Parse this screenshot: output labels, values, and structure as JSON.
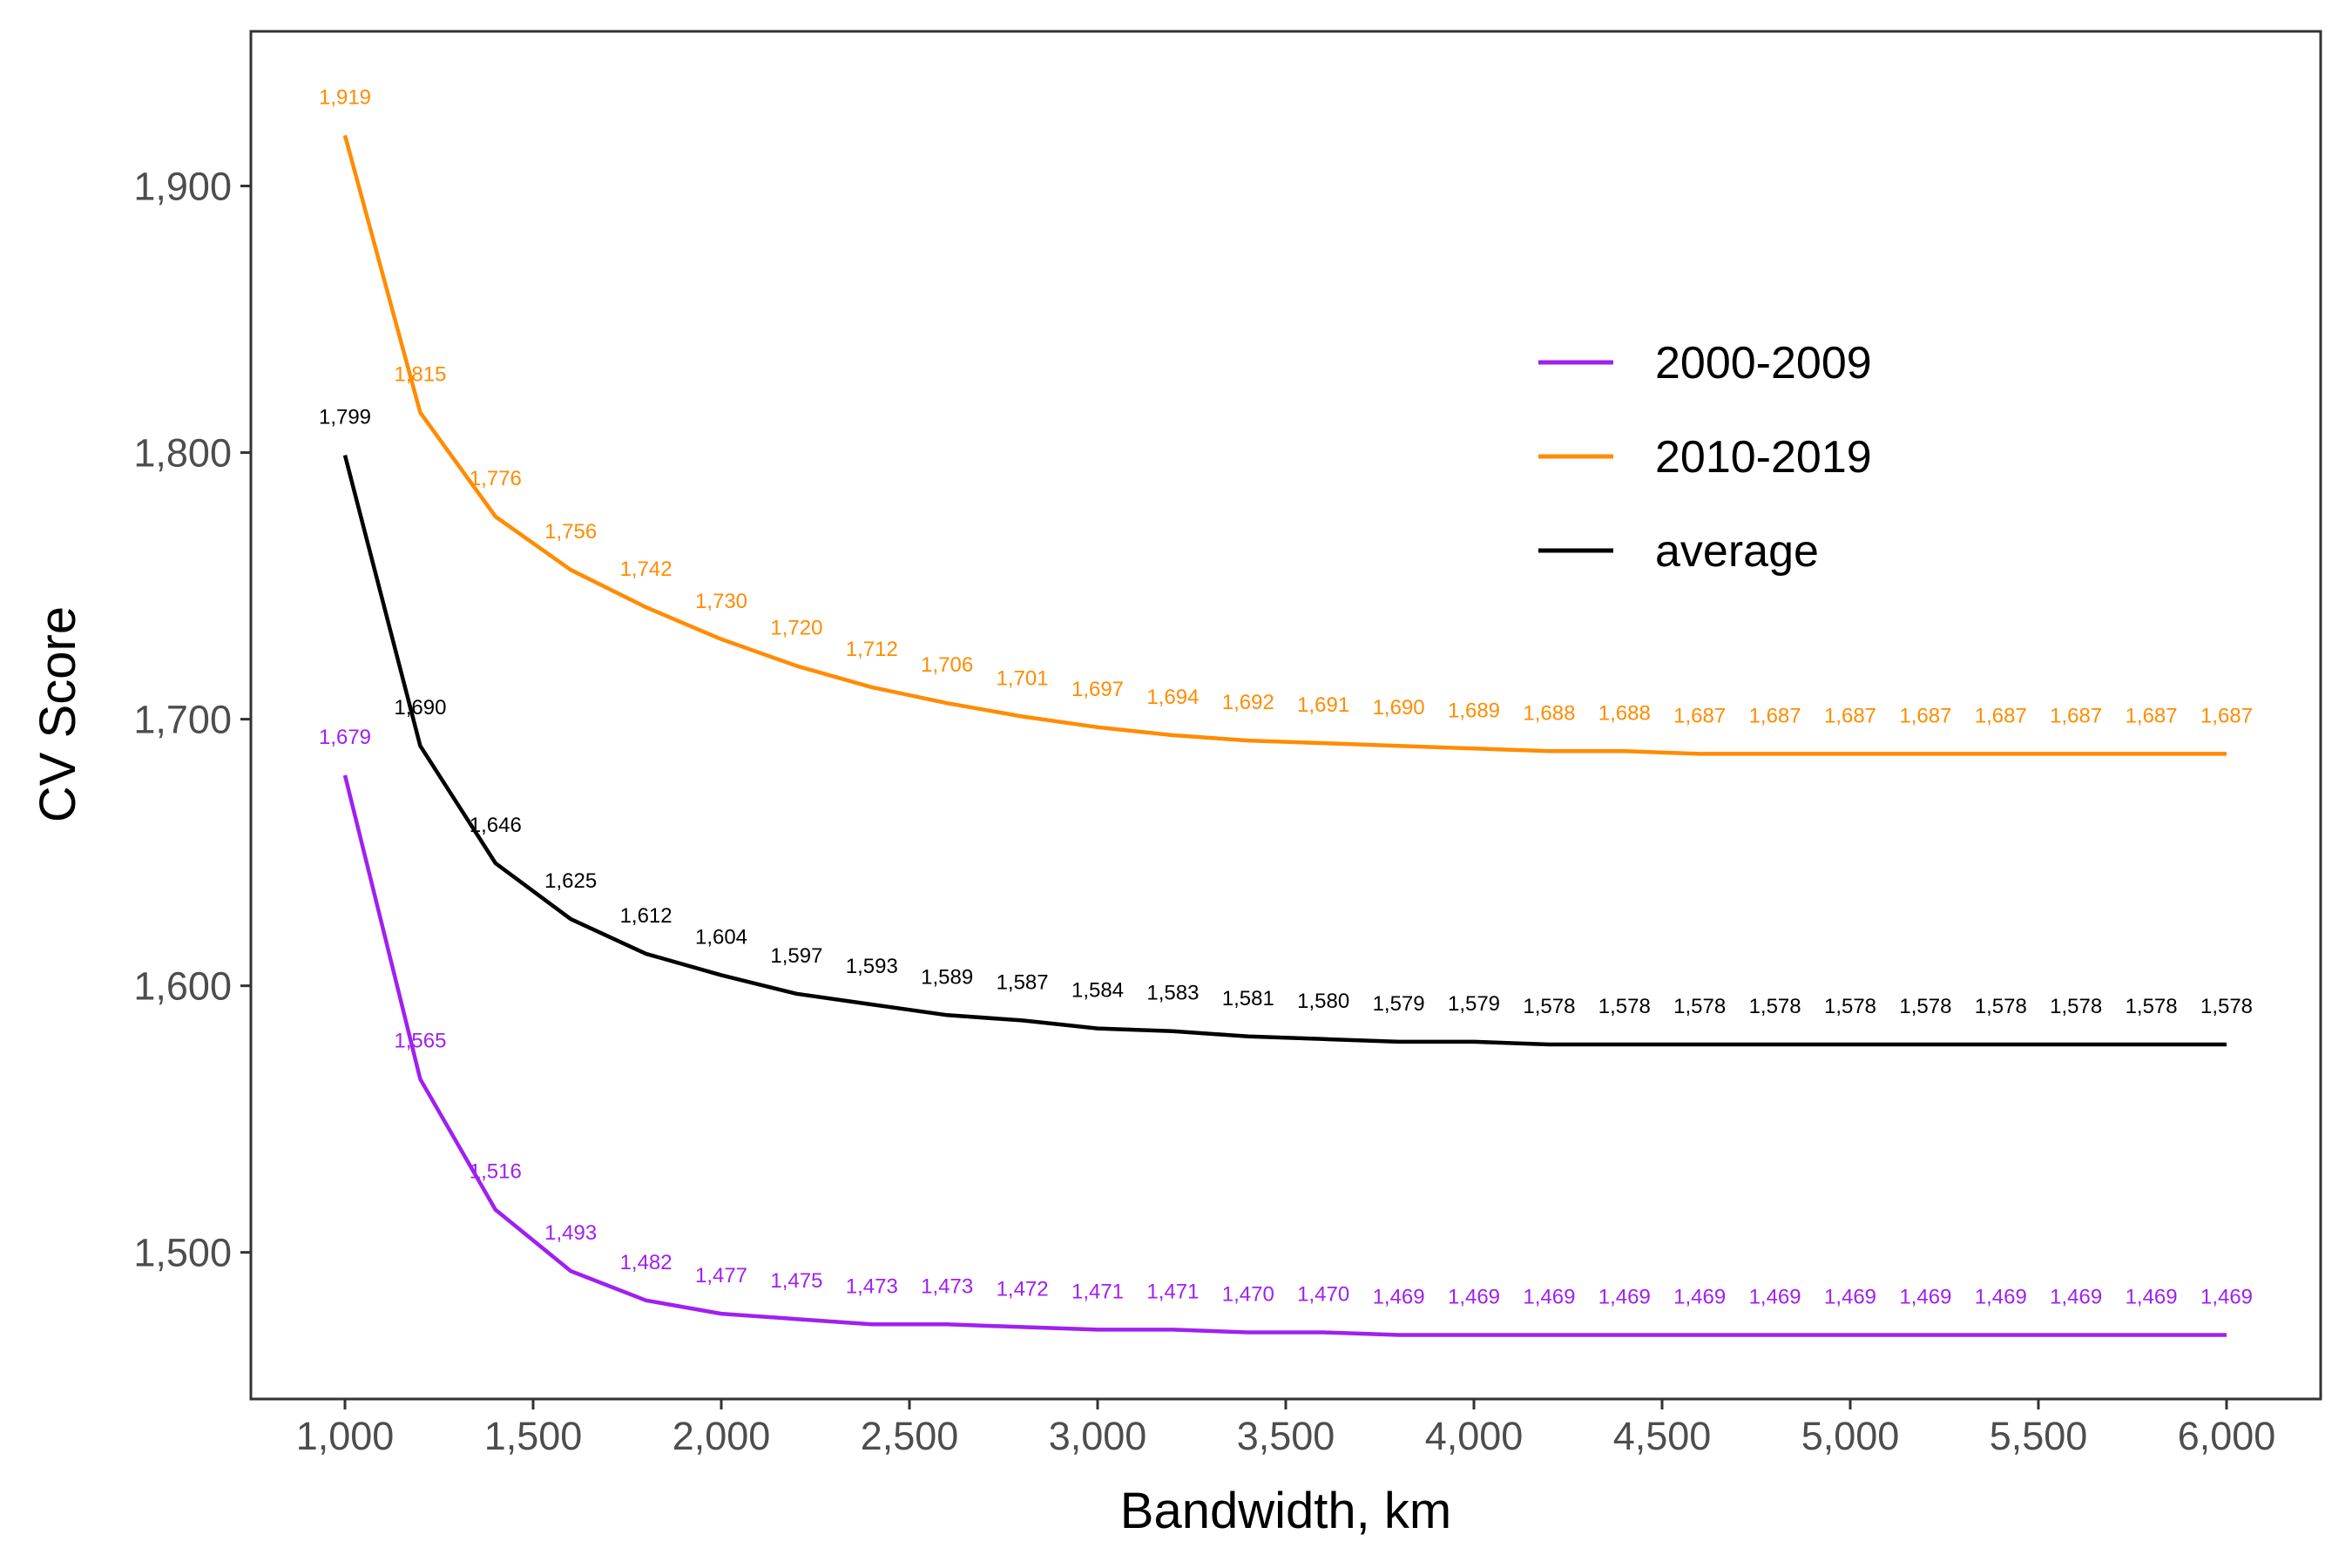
{
  "chart_data": {
    "type": "line",
    "xlabel": "Bandwidth, km",
    "ylabel": "CV Score",
    "xlim": [
      750,
      6250
    ],
    "ylim": [
      1445,
      1958
    ],
    "x_ticks": [
      1000,
      1500,
      2000,
      2500,
      3000,
      3500,
      4000,
      4500,
      5000,
      5500,
      6000
    ],
    "x_tick_labels": [
      "1,000",
      "1,500",
      "2,000",
      "2,500",
      "3,000",
      "3,500",
      "4,000",
      "4,500",
      "5,000",
      "5,500",
      "6,000"
    ],
    "y_ticks": [
      1500,
      1600,
      1700,
      1800,
      1900
    ],
    "y_tick_labels": [
      "1,500",
      "1,600",
      "1,700",
      "1,800",
      "1,900"
    ],
    "grid": false,
    "legend_position": "top-right",
    "x": [
      1000,
      1200,
      1400,
      1600,
      1800,
      2000,
      2200,
      2400,
      2600,
      2800,
      3000,
      3200,
      3400,
      3600,
      3800,
      4000,
      4200,
      4400,
      4600,
      4800,
      5000,
      5200,
      5400,
      5600,
      5800,
      6000
    ],
    "series": [
      {
        "name": "2000-2009",
        "color": "#a020f0",
        "values": [
          1679,
          1565,
          1516,
          1493,
          1482,
          1477,
          1475,
          1473,
          1473,
          1472,
          1471,
          1471,
          1470,
          1470,
          1469,
          1469,
          1469,
          1469,
          1469,
          1469,
          1469,
          1469,
          1469,
          1469,
          1469,
          1469
        ],
        "labels": [
          "1,679",
          "1,565",
          "1,516",
          "1,493",
          "1,482",
          "1,477",
          "1,475",
          "1,473",
          "1,473",
          "1,472",
          "1,471",
          "1,471",
          "1,470",
          "1,470",
          "1,469",
          "1,469",
          "1,469",
          "1,469",
          "1,469",
          "1,469",
          "1,469",
          "1,469",
          "1,469",
          "1,469",
          "1,469",
          "1,469"
        ]
      },
      {
        "name": "2010-2019",
        "color": "#ff8c00",
        "values": [
          1919,
          1815,
          1776,
          1756,
          1742,
          1730,
          1720,
          1712,
          1706,
          1701,
          1697,
          1694,
          1692,
          1691,
          1690,
          1689,
          1688,
          1688,
          1687,
          1687,
          1687,
          1687,
          1687,
          1687,
          1687,
          1687
        ],
        "labels": [
          "1,919",
          "1,815",
          "1,776",
          "1,756",
          "1,742",
          "1,730",
          "1,720",
          "1,712",
          "1,706",
          "1,701",
          "1,697",
          "1,694",
          "1,692",
          "1,691",
          "1,690",
          "1,689",
          "1,688",
          "1,688",
          "1,687",
          "1,687",
          "1,687",
          "1,687",
          "1,687",
          "1,687",
          "1,687",
          "1,687"
        ]
      },
      {
        "name": "average",
        "color": "#000000",
        "values": [
          1799,
          1690,
          1646,
          1625,
          1612,
          1604,
          1597,
          1593,
          1589,
          1587,
          1584,
          1583,
          1581,
          1580,
          1579,
          1579,
          1578,
          1578,
          1578,
          1578,
          1578,
          1578,
          1578,
          1578,
          1578,
          1578
        ],
        "labels": [
          "1,799",
          "1,690",
          "1,646",
          "1,625",
          "1,612",
          "1,604",
          "1,597",
          "1,593",
          "1,589",
          "1,587",
          "1,584",
          "1,583",
          "1,581",
          "1,580",
          "1,579",
          "1,579",
          "1,578",
          "1,578",
          "1,578",
          "1,578",
          "1,578",
          "1,578",
          "1,578",
          "1,578",
          "1,578",
          "1,578"
        ]
      }
    ]
  }
}
